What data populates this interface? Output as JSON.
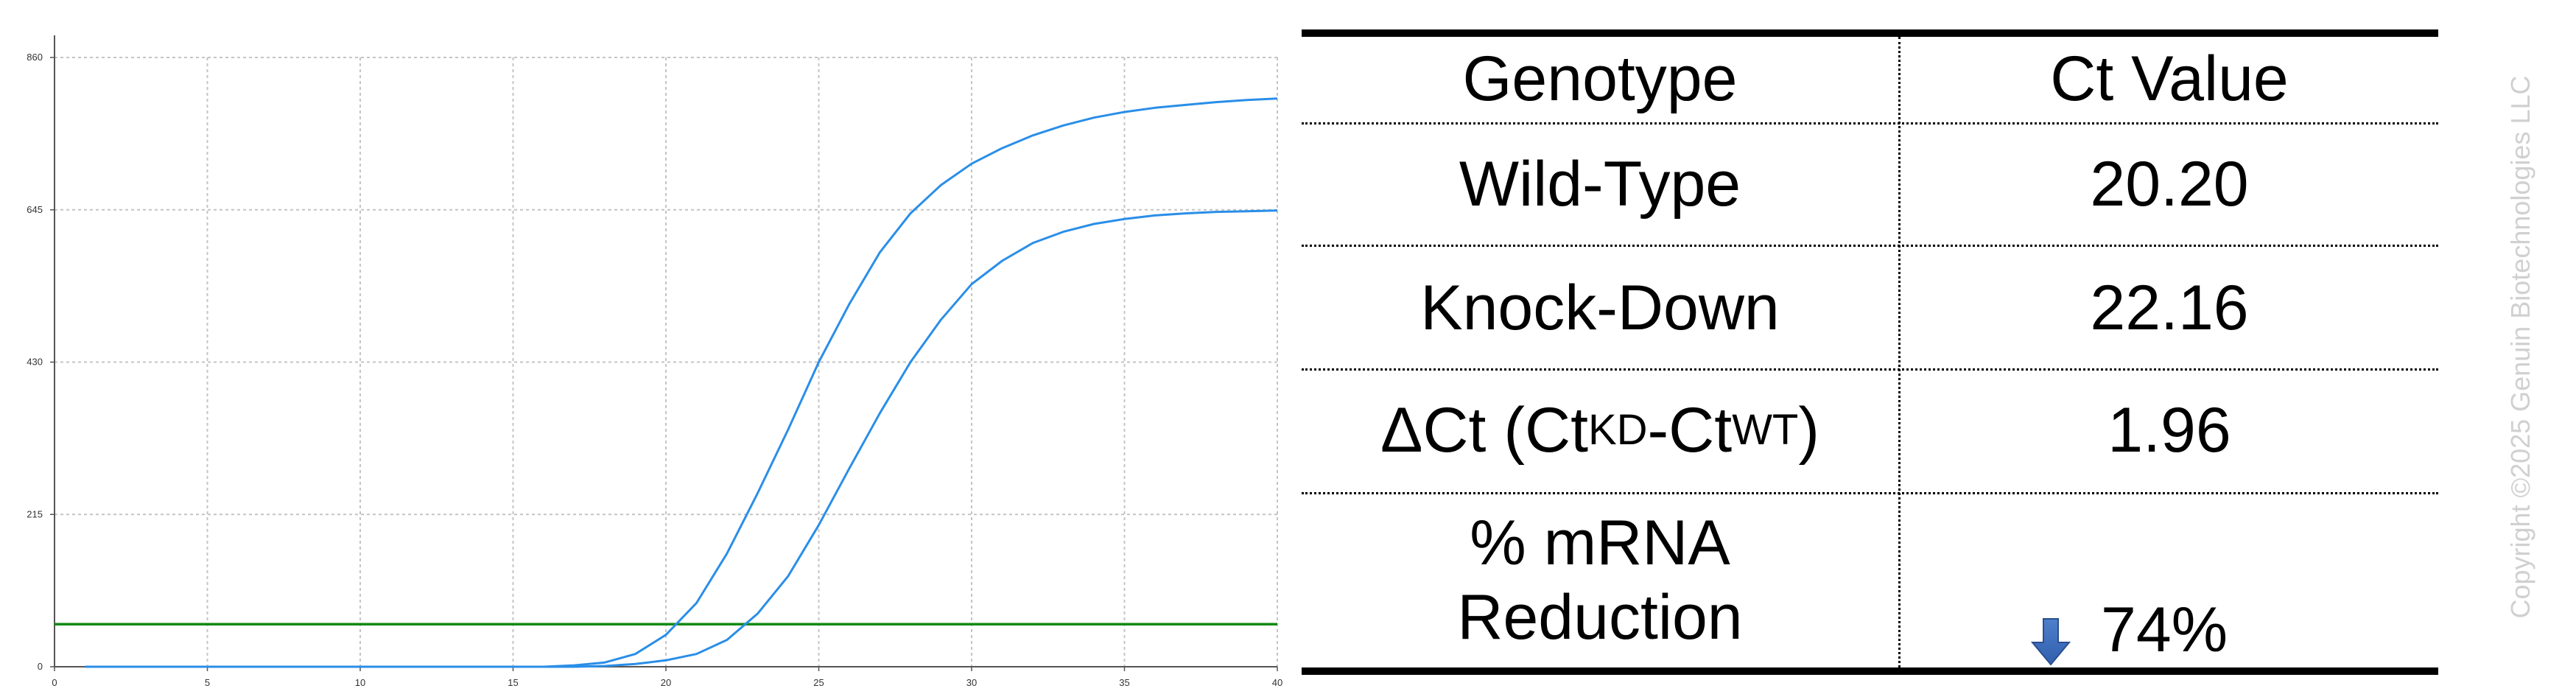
{
  "chart_data": {
    "type": "line",
    "title": "",
    "xlabel": "",
    "ylabel": "",
    "xlim": [
      0,
      40
    ],
    "ylim": [
      0,
      860
    ],
    "x_ticks": [
      "0",
      "5",
      "10",
      "15",
      "20",
      "25",
      "30",
      "35",
      "40"
    ],
    "y_ticks": [
      "0",
      "215",
      "430",
      "645",
      "860"
    ],
    "grid": true,
    "threshold": {
      "y": 60,
      "color": "#138a13"
    },
    "series": [
      {
        "color": "#2a8ee8",
        "x": [
          1,
          16,
          17,
          18,
          19,
          20,
          21,
          22,
          23,
          24,
          25,
          26,
          27,
          28,
          29,
          30,
          31,
          32,
          33,
          34,
          35,
          36,
          37,
          38,
          39,
          40
        ],
        "y": [
          0,
          0,
          2,
          6,
          18,
          45,
          90,
          160,
          245,
          335,
          430,
          512,
          585,
          640,
          680,
          710,
          732,
          750,
          764,
          775,
          783,
          789,
          793,
          797,
          800,
          802
        ]
      },
      {
        "color": "#2a8ee8",
        "x": [
          1,
          16,
          17,
          18,
          19,
          20,
          21,
          22,
          23,
          24,
          25,
          26,
          27,
          28,
          29,
          30,
          31,
          32,
          33,
          34,
          35,
          36,
          37,
          38,
          39,
          40
        ],
        "y": [
          0,
          0,
          0,
          1,
          4,
          9,
          18,
          38,
          75,
          128,
          200,
          280,
          358,
          430,
          490,
          540,
          573,
          598,
          614,
          625,
          632,
          637,
          640,
          642,
          643,
          644
        ]
      }
    ]
  },
  "table": {
    "header": [
      "Genotype",
      "Ct Value"
    ],
    "rows": [
      {
        "genotype": "Wild-Type",
        "value": "20.20"
      },
      {
        "genotype": "Knock-Down",
        "value": "22.16"
      },
      {
        "genotype_prefix": "ΔCt (Ct",
        "genotype_sub1": "KD",
        "genotype_mid": "-Ct",
        "genotype_sub2": "WT",
        "genotype_suffix": ")",
        "value": "1.96"
      },
      {
        "genotype_line1": "% mRNA",
        "genotype_line2": "Reduction",
        "value": "74%",
        "icon": "down-arrow-icon"
      }
    ]
  },
  "watermark": "Copyright ©2025 Genuin Biotechnologies LLC",
  "colors": {
    "series": "#2a8ee8",
    "threshold": "#138a13",
    "arrow": "#2f5fad",
    "grid": "#c4c4c4",
    "watermark": "#d0d0d0"
  }
}
